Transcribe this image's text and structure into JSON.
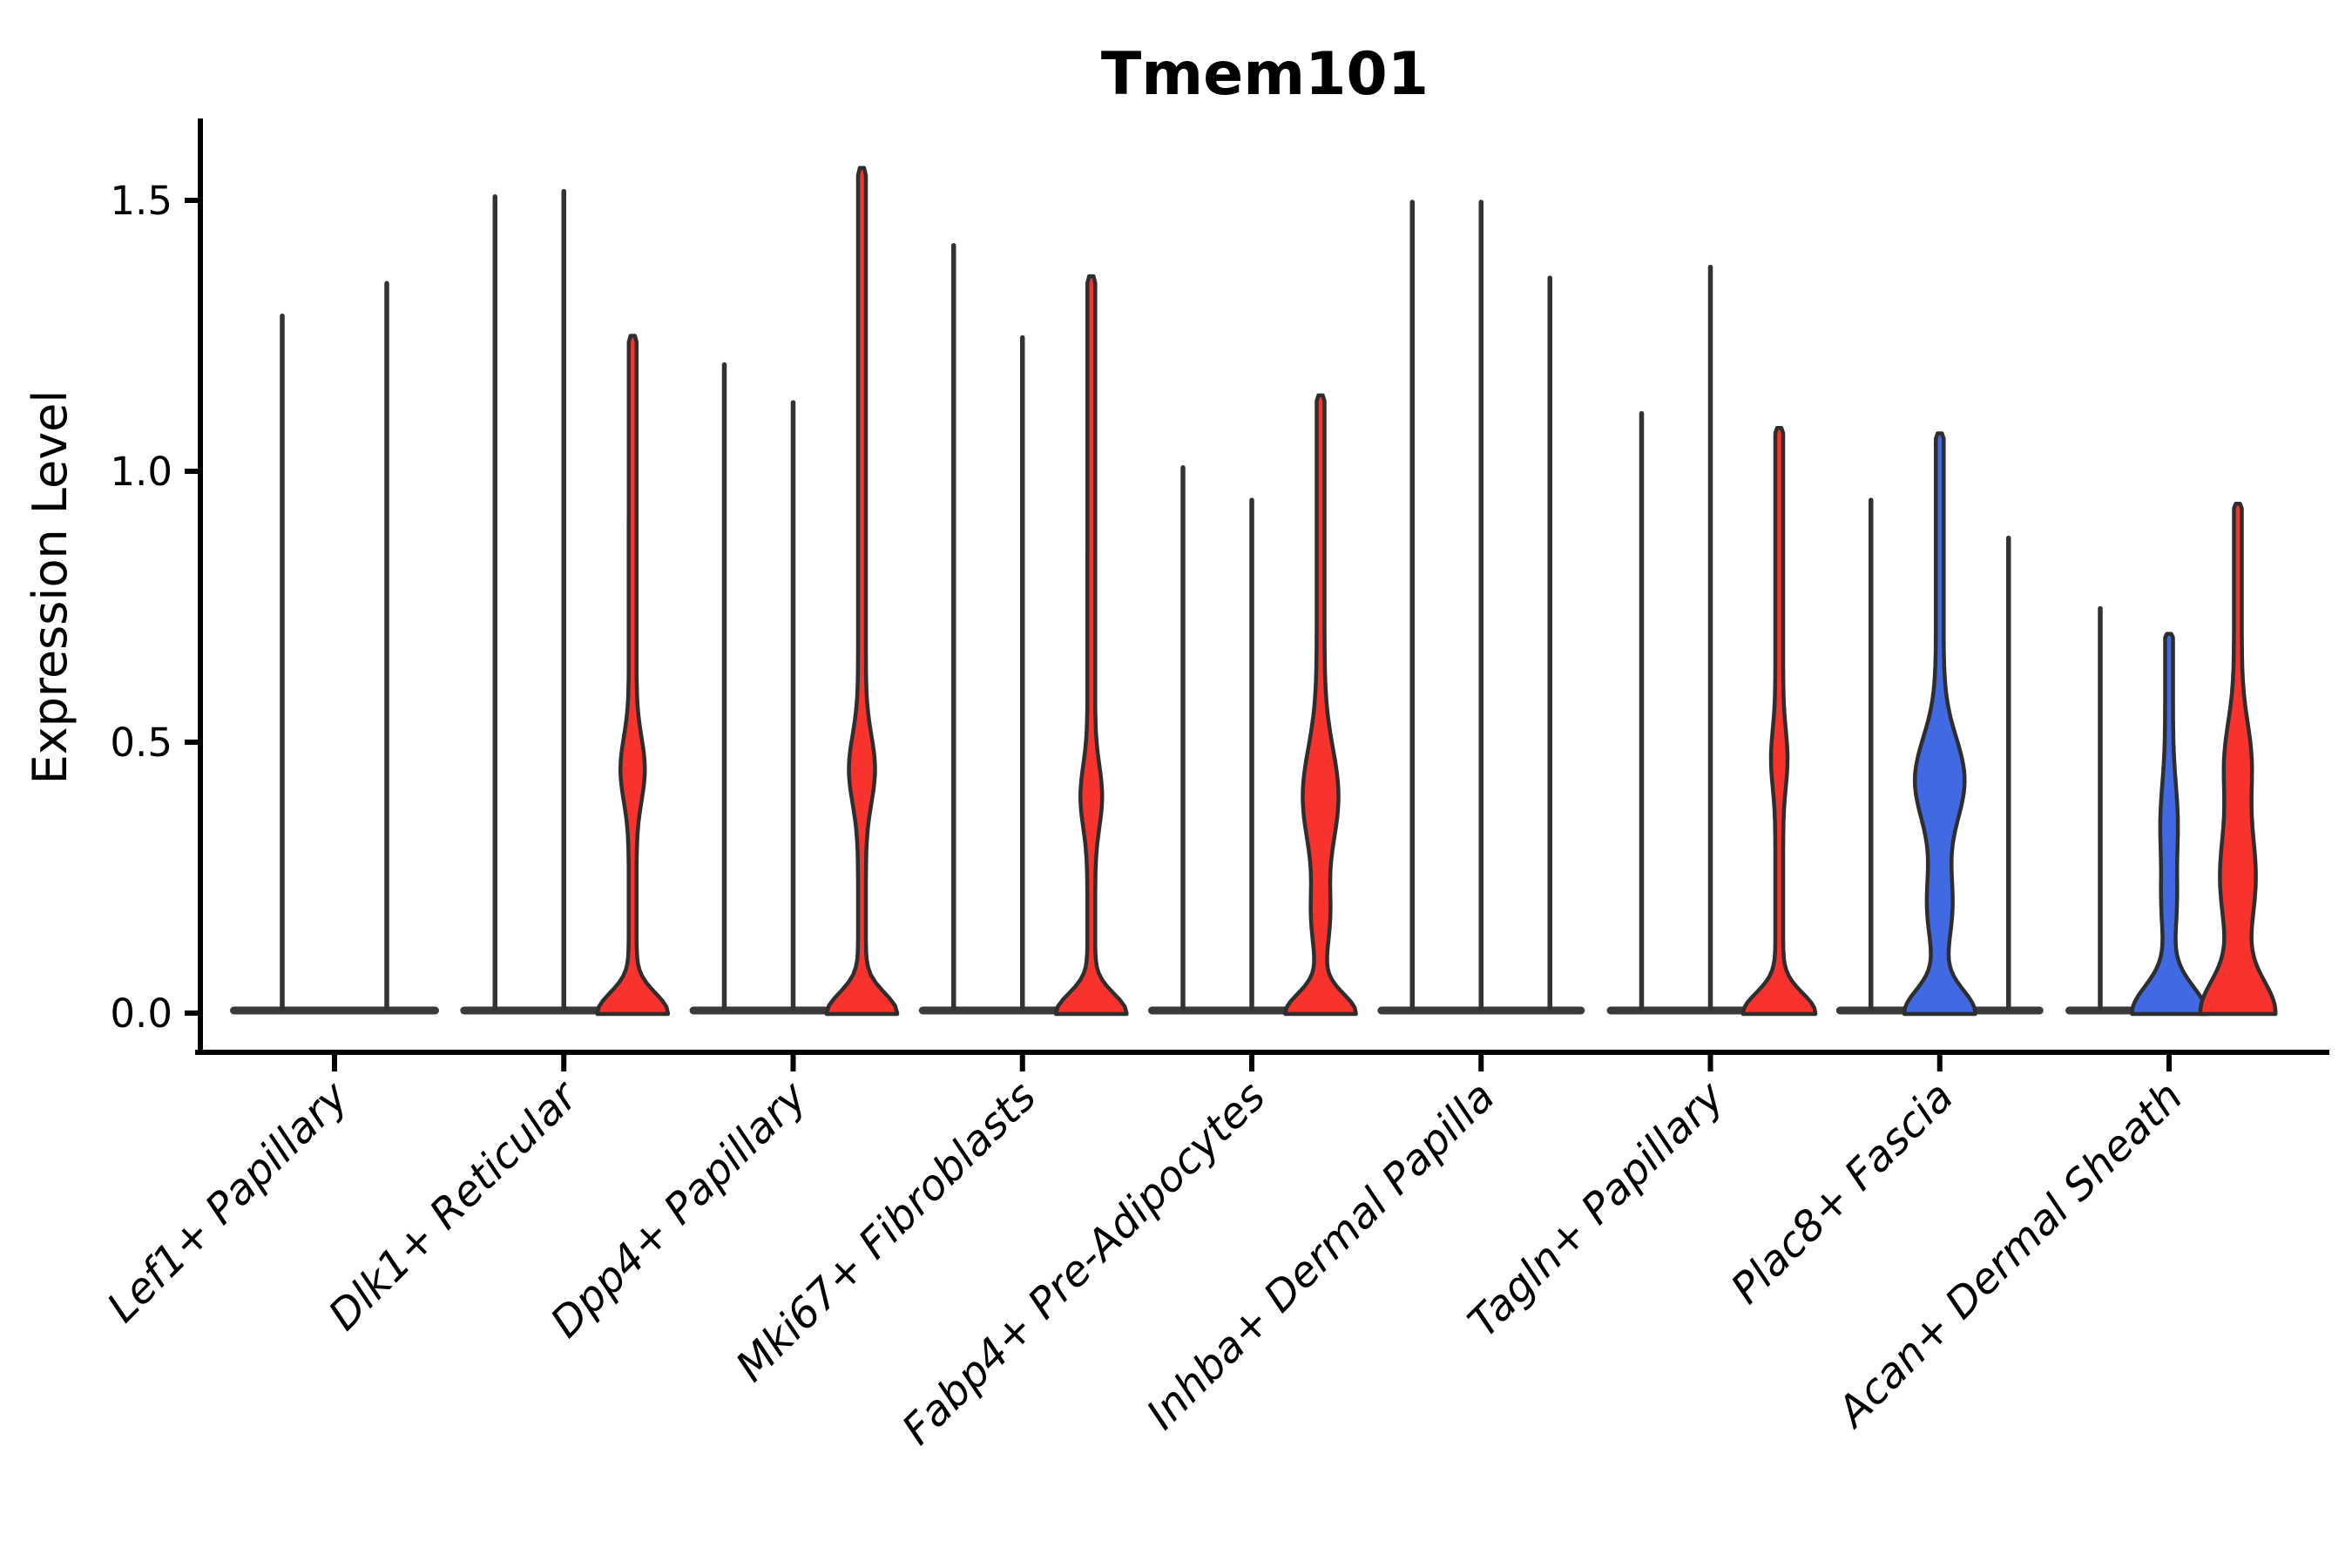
{
  "chart_data": {
    "type": "violin",
    "title": "Tmem101",
    "ylabel": "Expression Level",
    "xlabel": "",
    "ylim": [
      0,
      1.64
    ],
    "grid": false,
    "legend": null,
    "yticks": {
      "values": [
        0.0,
        0.5,
        1.0,
        1.5
      ],
      "labels": [
        "0.0",
        "0.5",
        "1.0",
        "1.5"
      ]
    },
    "palette": {
      "red": "#F8322C",
      "blue": "#4169E1",
      "spike_line": "#333333",
      "outline": "#2E2E2E",
      "base_strip": "#3A3A3A",
      "axis": "#000000"
    },
    "categories": [
      {
        "label": "Lef1+ Papillary",
        "violins": [
          {
            "max": 1.29,
            "style": "line"
          },
          {
            "max": 1.35,
            "style": "line"
          }
        ]
      },
      {
        "label": "Dlk1+ Reticular",
        "violins": [
          {
            "max": 1.51,
            "style": "line"
          },
          {
            "max": 1.52,
            "style": "line"
          },
          {
            "max": 1.25,
            "style": "violin",
            "color": "red",
            "density": {
              "base": 36,
              "baseS": 0.052,
              "bulge": 9.5,
              "bulgeC": 0.45,
              "bulgeS": 0.082
            }
          }
        ]
      },
      {
        "label": "Dpp4+ Papillary",
        "violins": [
          {
            "max": 1.2,
            "style": "line"
          },
          {
            "max": 1.13,
            "style": "line"
          },
          {
            "max": 1.56,
            "style": "violin",
            "color": "red",
            "density": {
              "base": 36,
              "baseS": 0.052,
              "bulge": 10.5,
              "bulgeC": 0.45,
              "bulgeS": 0.088
            }
          }
        ]
      },
      {
        "label": "Mki67+ Fibroblasts",
        "violins": [
          {
            "max": 1.42,
            "style": "line"
          },
          {
            "max": 1.25,
            "style": "line"
          },
          {
            "max": 1.36,
            "style": "violin",
            "color": "red",
            "density": {
              "base": 36,
              "baseS": 0.05,
              "bulge": 8,
              "bulgeC": 0.4,
              "bulgeS": 0.08
            }
          }
        ]
      },
      {
        "label": "Fabp4+ Pre-Adipocytes",
        "violins": [
          {
            "max": 1.01,
            "style": "line"
          },
          {
            "max": 0.95,
            "style": "line"
          },
          {
            "max": 1.14,
            "style": "violin",
            "color": "red",
            "density": {
              "base": 36,
              "baseS": 0.05,
              "mid": 6,
              "midC": 0.18,
              "midS": 0.08,
              "bulge": 16,
              "bulgeC": 0.4,
              "bulgeS": 0.125
            }
          }
        ]
      },
      {
        "label": "Inhba+ Dermal Papilla",
        "violins": [
          {
            "max": 1.5,
            "style": "line"
          },
          {
            "max": 1.5,
            "style": "line"
          },
          {
            "max": 1.36,
            "style": "line"
          }
        ]
      },
      {
        "label": "Tagln+ Papillary",
        "violins": [
          {
            "max": 1.11,
            "style": "line"
          },
          {
            "max": 1.38,
            "style": "line"
          },
          {
            "max": 1.08,
            "style": "violin",
            "color": "red",
            "density": {
              "base": 37,
              "baseS": 0.052,
              "bulge": 5,
              "bulgeC": 0.47,
              "bulgeS": 0.075
            }
          }
        ]
      },
      {
        "label": "Plac8+ Fascia",
        "violins": [
          {
            "max": 0.95,
            "style": "line"
          },
          {
            "max": 1.07,
            "style": "violin",
            "color": "blue",
            "density": {
              "base": 36,
              "baseS": 0.06,
              "mid": 10,
              "midC": 0.2,
              "midS": 0.1,
              "bulge": 24,
              "bulgeC": 0.43,
              "bulgeS": 0.11
            }
          },
          {
            "max": 0.88,
            "style": "line"
          }
        ]
      },
      {
        "label": "Acan+ Dermal Sheath",
        "violins": [
          {
            "max": 0.75,
            "style": "line"
          },
          {
            "max": 0.7,
            "style": "violin",
            "color": "blue",
            "density": {
              "base": 38,
              "baseS": 0.07,
              "mid": 4,
              "midC": 0.2,
              "midS": 0.08,
              "bulge": 5.5,
              "bulgeC": 0.35,
              "bulgeS": 0.1
            }
          },
          {
            "max": 0.94,
            "style": "violin",
            "color": "red",
            "density": {
              "base": 38,
              "baseS": 0.085,
              "mid": 16,
              "midC": 0.25,
              "midS": 0.14,
              "bulge": 10,
              "bulgeC": 0.47,
              "bulgeS": 0.1
            }
          }
        ]
      }
    ]
  }
}
